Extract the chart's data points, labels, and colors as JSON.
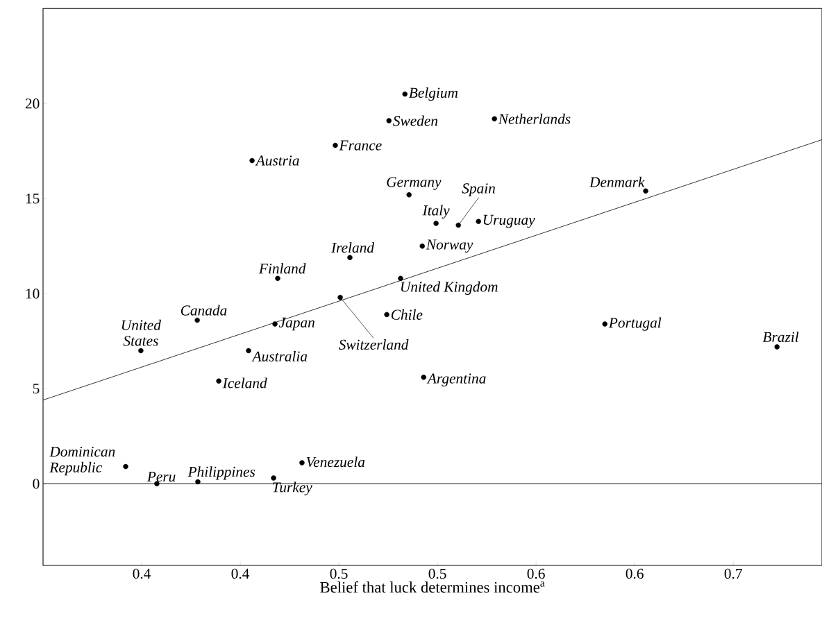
{
  "chart_data": {
    "type": "scatter",
    "xlabel": "Belief that luck determines income$^{a}$",
    "xlim": [
      0.3,
      0.695
    ],
    "ylim": [
      -4.3,
      25
    ],
    "xticks": [
      {
        "value": 0.35,
        "label": "0.4"
      },
      {
        "value": 0.4,
        "label": "0.4"
      },
      {
        "value": 0.45,
        "label": "0.5"
      },
      {
        "value": 0.5,
        "label": "0.5"
      },
      {
        "value": 0.55,
        "label": "0.6"
      },
      {
        "value": 0.6,
        "label": "0.6"
      },
      {
        "value": 0.65,
        "label": "0.7"
      }
    ],
    "yticks": [
      0,
      5,
      10,
      15,
      20
    ],
    "grid": false,
    "series": [
      {
        "type": "scatter",
        "marker": "circle",
        "color": "#000000",
        "x": [
          0.4835,
          0.4754,
          0.5289,
          0.4482,
          0.406,
          0.4856,
          0.5106,
          0.4993,
          0.5208,
          0.6056,
          0.4923,
          0.4556,
          0.419,
          0.4813,
          0.4507,
          0.4743,
          0.3782,
          0.4176,
          0.5849,
          0.6722,
          0.3496,
          0.4042,
          0.3891,
          0.493,
          0.3419,
          0.4313,
          0.3577,
          0.3785,
          0.4169
        ],
        "values": [
          20.5,
          19.1,
          19.2,
          17.8,
          17.0,
          15.2,
          13.6,
          13.7,
          13.8,
          15.4,
          12.5,
          11.9,
          10.8,
          10.8,
          9.8,
          8.9,
          8.6,
          8.4,
          8.4,
          7.2,
          7.0,
          7.0,
          5.4,
          5.6,
          0.9,
          1.1,
          0.0,
          0.1,
          0.3
        ]
      },
      {
        "type": "line",
        "marker": "none",
        "color": "#000000",
        "x": [
          0.3,
          0.695
        ],
        "values": [
          4.4,
          18.1
        ]
      }
    ],
    "ref_lines": [
      {
        "axis": "y",
        "value": 0,
        "color": "#000000"
      }
    ],
    "annotations": [
      {
        "text": "Belgium",
        "x": 0.4835,
        "y": 20.5
      },
      {
        "text": "Sweden",
        "x": 0.4754,
        "y": 19.1
      },
      {
        "text": "Netherlands",
        "x": 0.5289,
        "y": 19.2
      },
      {
        "text": "France",
        "x": 0.4482,
        "y": 17.8
      },
      {
        "text": "Austria",
        "x": 0.406,
        "y": 17.0
      },
      {
        "text": "Germany",
        "x": 0.4856,
        "y": 15.2
      },
      {
        "text": "Spain",
        "x": 0.5106,
        "y": 13.6
      },
      {
        "text": "Italy",
        "x": 0.4993,
        "y": 13.7
      },
      {
        "text": "Uruguay",
        "x": 0.5208,
        "y": 13.8
      },
      {
        "text": "Denmark",
        "x": 0.6056,
        "y": 15.4
      },
      {
        "text": "Norway",
        "x": 0.4923,
        "y": 12.5
      },
      {
        "text": "Ireland",
        "x": 0.4556,
        "y": 11.9
      },
      {
        "text": "Finland",
        "x": 0.419,
        "y": 10.8
      },
      {
        "text": "United Kingdom",
        "x": 0.4813,
        "y": 10.8
      },
      {
        "text": "Switzerland",
        "x": 0.4507,
        "y": 9.8
      },
      {
        "text": "Chile",
        "x": 0.4743,
        "y": 8.9
      },
      {
        "text": "Canada",
        "x": 0.3782,
        "y": 8.6
      },
      {
        "text": "Japan",
        "x": 0.4176,
        "y": 8.4
      },
      {
        "text": "Portugal",
        "x": 0.5849,
        "y": 8.4
      },
      {
        "text": "Brazil",
        "x": 0.6722,
        "y": 7.2
      },
      {
        "text": "United States",
        "x": 0.3496,
        "y": 7.0
      },
      {
        "text": "Australia",
        "x": 0.4042,
        "y": 7.0
      },
      {
        "text": "Iceland",
        "x": 0.3891,
        "y": 5.4
      },
      {
        "text": "Argentina",
        "x": 0.493,
        "y": 5.6
      },
      {
        "text": "Dominican Republic",
        "x": 0.3419,
        "y": 0.9
      },
      {
        "text": "Venezuela",
        "x": 0.4313,
        "y": 1.1
      },
      {
        "text": "Peru",
        "x": 0.3577,
        "y": 0.0
      },
      {
        "text": "Philippines",
        "x": 0.3785,
        "y": 0.1
      },
      {
        "text": "Turkey",
        "x": 0.4169,
        "y": 0.3
      }
    ]
  }
}
